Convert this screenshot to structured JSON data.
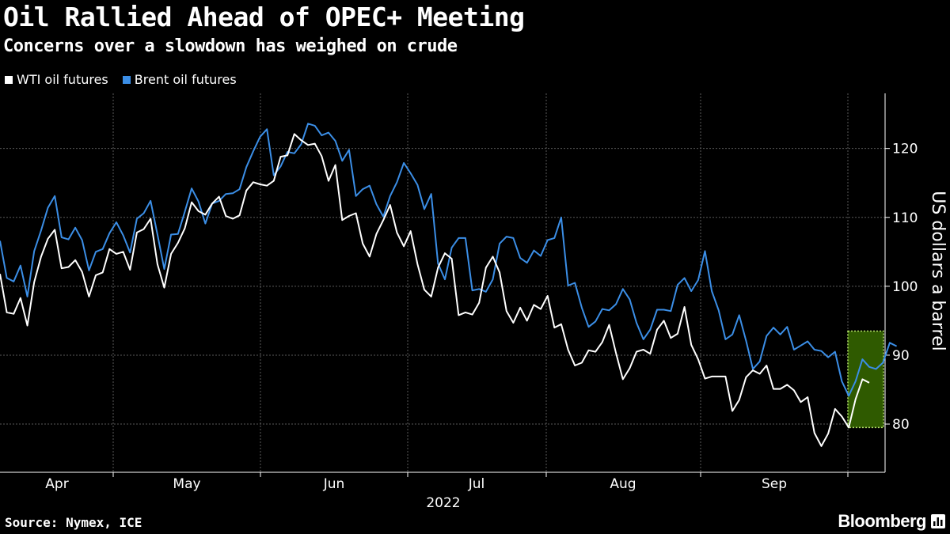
{
  "title": "Oil Rallied Ahead of OPEC+ Meeting",
  "subtitle": "Concerns over a slowdown has weighed on crude",
  "source": "Source: Nymex, ICE",
  "brand": "Bloomberg",
  "colors": {
    "wti": "#ffffff",
    "brent": "#3b8ee6",
    "highlight": "#2f5a00",
    "highlight_border": "#b6e36a",
    "grid": "#5a5a5a"
  },
  "chart_data": {
    "type": "line",
    "ylabel": "US dollars a barrel",
    "ylim": [
      73,
      128
    ],
    "yticks": [
      80,
      90,
      100,
      110,
      120
    ],
    "x_month_labels": [
      "Apr",
      "May",
      "Jun",
      "Jul",
      "Aug",
      "Sep"
    ],
    "x_year_label": "2022",
    "grid": true,
    "legend_position": "top-left",
    "highlight_region": {
      "from_index": 120,
      "to_index": 123,
      "ylim": [
        79.5,
        93.5
      ]
    },
    "series": [
      {
        "name": "WTI oil futures",
        "values": [
          101.8,
          96.2,
          96.0,
          98.3,
          94.3,
          100.6,
          104.3,
          106.9,
          108.2,
          102.6,
          102.8,
          103.8,
          102.1,
          98.5,
          101.6,
          102.0,
          105.4,
          104.7,
          105.0,
          102.4,
          107.8,
          108.3,
          109.8,
          103.2,
          99.8,
          104.7,
          106.3,
          108.4,
          112.2,
          110.9,
          110.4,
          112.0,
          113.0,
          110.2,
          109.8,
          110.3,
          113.9,
          115.1,
          114.8,
          114.6,
          115.3,
          118.8,
          119.0,
          122.1,
          121.2,
          120.5,
          120.7,
          118.9,
          115.3,
          117.6,
          109.6,
          110.2,
          110.6,
          106.2,
          104.3,
          107.6,
          109.6,
          111.8,
          107.8,
          105.8,
          108.0,
          103.2,
          99.5,
          98.5,
          102.7,
          104.8,
          104.0,
          95.8,
          96.2,
          95.9,
          97.6,
          102.7,
          104.3,
          102.0,
          96.4,
          94.7,
          96.9,
          95.0,
          97.3,
          96.7,
          98.6,
          94.0,
          94.5,
          90.8,
          88.5,
          88.9,
          90.7,
          90.5,
          91.9,
          94.4,
          90.3,
          86.5,
          88.1,
          90.5,
          90.8,
          90.2,
          93.7,
          95.0,
          92.5,
          93.1,
          97.0,
          91.5,
          89.4,
          86.6,
          86.9,
          86.9,
          86.9,
          81.9,
          83.5,
          86.8,
          87.8,
          87.3,
          88.5,
          85.1,
          85.1,
          85.7,
          84.9,
          83.2,
          83.9,
          78.7,
          76.8,
          78.6,
          82.2,
          81.1,
          79.5,
          83.6,
          86.5,
          86.0
        ]
      },
      {
        "name": "Brent oil futures",
        "values": [
          106.6,
          101.2,
          100.7,
          103.0,
          98.5,
          105.1,
          108.1,
          111.4,
          113.1,
          107.1,
          106.8,
          108.5,
          106.7,
          102.3,
          105.0,
          105.4,
          107.7,
          109.3,
          107.4,
          104.9,
          109.8,
          110.6,
          112.4,
          107.5,
          102.5,
          107.5,
          107.6,
          110.8,
          114.2,
          112.3,
          109.1,
          112.0,
          112.4,
          113.4,
          113.5,
          114.1,
          117.3,
          119.6,
          121.7,
          122.8,
          116.1,
          117.4,
          119.5,
          119.3,
          120.6,
          123.6,
          123.3,
          121.9,
          122.3,
          121.1,
          118.2,
          119.8,
          113.1,
          114.1,
          114.6,
          111.9,
          110.1,
          113.1,
          115.1,
          117.9,
          116.4,
          114.7,
          111.2,
          113.4,
          103.3,
          101.0,
          105.6,
          107.0,
          107.0,
          99.4,
          99.6,
          99.2,
          101.0,
          106.2,
          107.2,
          107.0,
          104.1,
          103.4,
          105.2,
          104.4,
          106.7,
          107.0,
          110.0,
          100.1,
          100.5,
          96.9,
          94.1,
          94.9,
          96.7,
          96.5,
          97.4,
          99.6,
          98.1,
          94.7,
          92.3,
          93.7,
          96.6,
          96.6,
          96.4,
          100.2,
          101.2,
          99.3,
          100.9,
          105.1,
          99.3,
          96.5,
          92.3,
          93.0,
          95.8,
          92.1,
          88.0,
          89.1,
          92.8,
          94.0,
          93.0,
          94.1,
          90.8,
          91.4,
          92.0,
          90.8,
          90.6,
          89.7,
          90.5,
          86.2,
          84.1,
          86.2,
          89.4,
          88.3,
          88.0,
          88.9,
          91.8,
          91.3
        ]
      }
    ]
  }
}
